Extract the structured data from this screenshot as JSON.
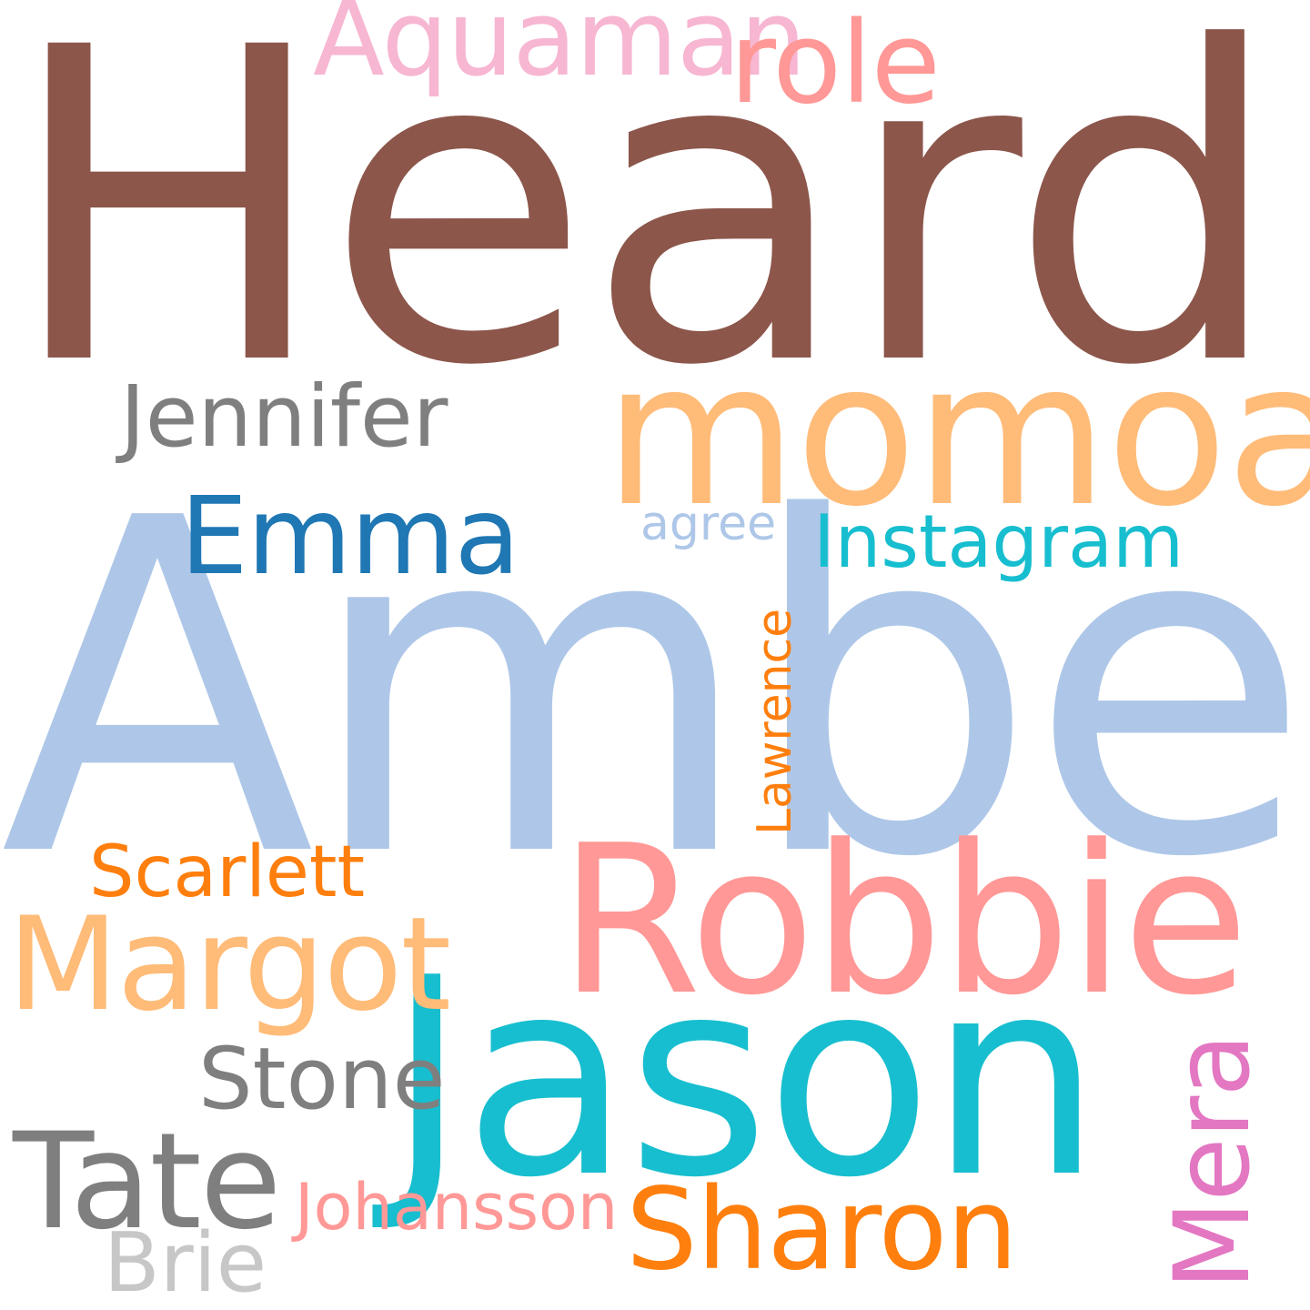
{
  "words": [
    {
      "key": "heard",
      "text": "Heard",
      "color": "#8c564b"
    },
    {
      "key": "amber",
      "text": "Amber",
      "color": "#aec7e8"
    },
    {
      "key": "momoa",
      "text": "momoa",
      "color": "#ffbb78"
    },
    {
      "key": "jason",
      "text": "Jason",
      "color": "#17becf"
    },
    {
      "key": "robbie",
      "text": "Robbie",
      "color": "#ff9896"
    },
    {
      "key": "margot",
      "text": "Margot",
      "color": "#ffbb78"
    },
    {
      "key": "tate",
      "text": "Tate",
      "color": "#7f7f7f"
    },
    {
      "key": "sharon",
      "text": "Sharon",
      "color": "#ff7f0e"
    },
    {
      "key": "aquaman",
      "text": "Aquaman",
      "color": "#f7b6d2"
    },
    {
      "key": "role",
      "text": "role",
      "color": "#ff9896"
    },
    {
      "key": "jennifer",
      "text": "Jennifer",
      "color": "#7f7f7f"
    },
    {
      "key": "emma",
      "text": "Emma",
      "color": "#1f77b4"
    },
    {
      "key": "instagram",
      "text": "Instagram",
      "color": "#17becf"
    },
    {
      "key": "agree",
      "text": "agree",
      "color": "#aec7e8"
    },
    {
      "key": "scarlett",
      "text": "Scarlett",
      "color": "#ff7f0e"
    },
    {
      "key": "stone",
      "text": "Stone",
      "color": "#7f7f7f"
    },
    {
      "key": "johansson",
      "text": "Johansson",
      "color": "#ff9896"
    },
    {
      "key": "brie",
      "text": "Brie",
      "color": "#c7c7c7"
    },
    {
      "key": "mera",
      "text": "Mera",
      "color": "#e377c2"
    },
    {
      "key": "lawrence",
      "text": "Lawrence",
      "color": "#ff7f0e"
    }
  ]
}
